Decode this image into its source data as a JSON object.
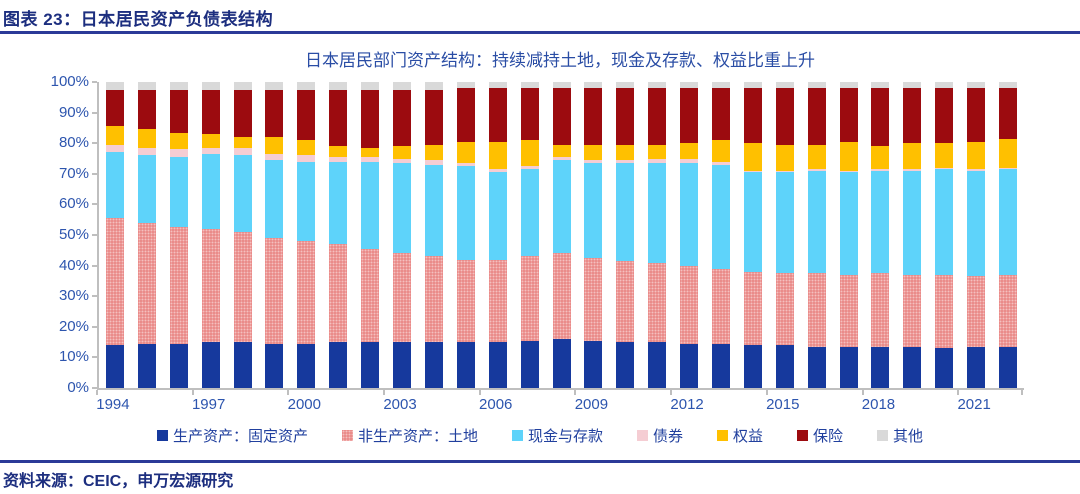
{
  "figure": {
    "header": "图表 23：日本居民资产负债表结构",
    "source": "资料来源：CEIC，申万宏源研究"
  },
  "colors": {
    "header_navy": "#1C2E7F",
    "rule_navy": "#2B3A98",
    "title_blue": "#2A4DA5",
    "axis_label_blue": "#2D55AE",
    "legend_text_blue": "#21409E",
    "axis_grey": "#BFBFBF",
    "background": "#FFFFFF"
  },
  "chart_data": {
    "type": "bar",
    "stacked": true,
    "percent_stacked": true,
    "title": "日本居民部门资产结构：持续减持土地，现金及存款、权益比重上升",
    "xlabel": "",
    "ylabel": "",
    "ylim": [
      0,
      100
    ],
    "unit": "%",
    "grid": false,
    "legend_position": "bottom",
    "categories": [
      "1994",
      "1995",
      "1996",
      "1997",
      "1998",
      "1999",
      "2000",
      "2001",
      "2002",
      "2003",
      "2004",
      "2005",
      "2006",
      "2007",
      "2008",
      "2009",
      "2010",
      "2011",
      "2012",
      "2013",
      "2014",
      "2015",
      "2016",
      "2017",
      "2018",
      "2019",
      "2020",
      "2021",
      "2022"
    ],
    "x_tick_labels": [
      "1994",
      "1997",
      "2000",
      "2003",
      "2006",
      "2009",
      "2012",
      "2015",
      "2018",
      "2021"
    ],
    "y_tick_labels": [
      "0%",
      "10%",
      "20%",
      "30%",
      "40%",
      "50%",
      "60%",
      "70%",
      "80%",
      "90%",
      "100%"
    ],
    "series": [
      {
        "name": "生产资产：固定资产",
        "color": "#16399D",
        "pattern": "solid",
        "values": [
          14.0,
          14.5,
          14.5,
          15.0,
          15.0,
          14.5,
          14.5,
          15.0,
          15.0,
          15.0,
          15.0,
          15.0,
          15.0,
          15.5,
          16.0,
          15.5,
          15.0,
          15.0,
          14.5,
          14.5,
          14.0,
          14.0,
          13.5,
          13.5,
          13.5,
          13.5,
          13.0,
          13.5,
          13.5
        ]
      },
      {
        "name": "非生产资产：土地",
        "color": "#E8817F",
        "pattern": "dotted",
        "values": [
          41.5,
          39.5,
          38.0,
          37.0,
          36.0,
          34.5,
          33.5,
          32.0,
          30.5,
          29.0,
          28.0,
          27.0,
          27.0,
          27.5,
          28.0,
          27.0,
          26.5,
          26.0,
          25.5,
          24.5,
          24.0,
          23.5,
          24.0,
          23.5,
          24.0,
          23.5,
          24.0,
          23.0,
          23.5
        ]
      },
      {
        "name": "现金与存款",
        "color": "#5ED3FA",
        "pattern": "solid",
        "values": [
          21.5,
          22.0,
          23.0,
          24.5,
          25.0,
          25.5,
          26.0,
          27.0,
          28.5,
          29.5,
          30.0,
          30.5,
          28.5,
          28.5,
          30.5,
          31.0,
          32.0,
          32.5,
          33.5,
          34.0,
          32.5,
          33.0,
          33.5,
          33.5,
          33.5,
          34.0,
          34.5,
          34.5,
          34.5
        ]
      },
      {
        "name": "债券",
        "color": "#F5CDD3",
        "pattern": "solid",
        "values": [
          2.5,
          2.5,
          2.5,
          2.0,
          2.5,
          2.0,
          2.0,
          1.5,
          1.5,
          1.5,
          1.5,
          1.0,
          1.0,
          1.0,
          1.0,
          1.0,
          1.0,
          1.5,
          1.5,
          1.0,
          0.5,
          0.5,
          0.5,
          0.5,
          0.5,
          0.5,
          0.5,
          0.5,
          0.5
        ]
      },
      {
        "name": "权益",
        "color": "#FFC000",
        "pattern": "solid",
        "values": [
          6.0,
          6.0,
          5.5,
          4.5,
          3.5,
          5.5,
          5.0,
          3.5,
          3.0,
          4.0,
          5.0,
          7.0,
          9.0,
          8.5,
          4.0,
          5.0,
          5.0,
          4.5,
          5.0,
          7.0,
          9.0,
          8.5,
          8.0,
          9.5,
          7.5,
          8.5,
          8.0,
          9.0,
          9.5
        ]
      },
      {
        "name": "保险",
        "color": "#9C0B0F",
        "pattern": "solid",
        "values": [
          12.0,
          13.0,
          14.0,
          14.5,
          15.5,
          15.5,
          16.5,
          18.5,
          19.0,
          18.5,
          18.0,
          17.5,
          17.5,
          17.0,
          18.5,
          18.5,
          18.5,
          18.5,
          18.0,
          17.0,
          18.0,
          18.5,
          18.5,
          17.5,
          19.0,
          18.0,
          18.0,
          17.5,
          16.5
        ]
      },
      {
        "name": "其他",
        "color": "#D9D9D9",
        "pattern": "solid",
        "values": [
          2.5,
          2.5,
          2.5,
          2.5,
          2.5,
          2.5,
          2.5,
          2.5,
          2.5,
          2.5,
          2.5,
          2.0,
          2.0,
          2.0,
          2.0,
          2.0,
          2.0,
          2.0,
          2.0,
          2.0,
          2.0,
          2.0,
          2.0,
          2.0,
          2.0,
          2.0,
          2.0,
          2.0,
          2.0
        ]
      }
    ]
  }
}
